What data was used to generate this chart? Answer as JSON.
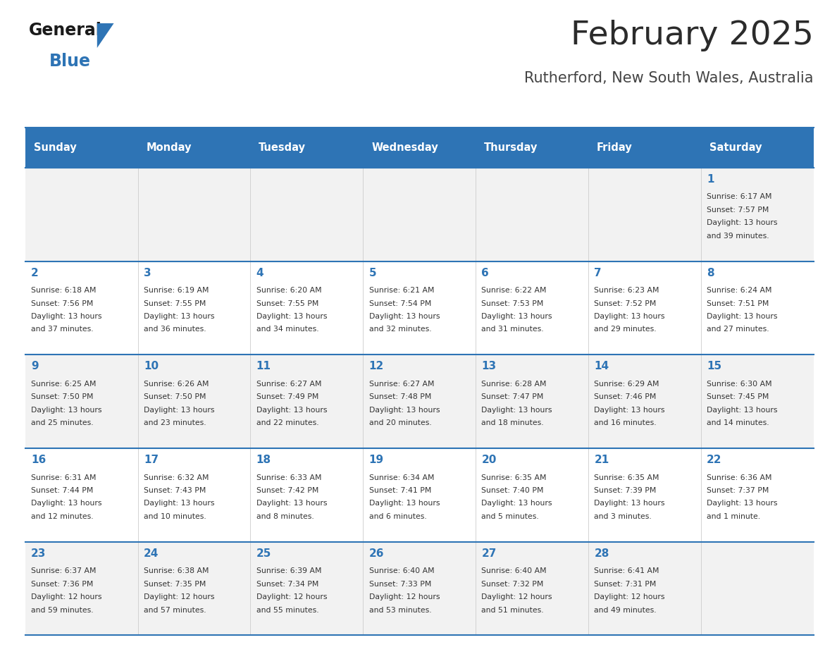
{
  "title": "February 2025",
  "subtitle": "Rutherford, New South Wales, Australia",
  "header_bg": "#2E74B5",
  "header_text": "#FFFFFF",
  "cell_bg_odd": "#F2F2F2",
  "cell_bg_even": "#FFFFFF",
  "separator_color": "#2E74B5",
  "day_headers": [
    "Sunday",
    "Monday",
    "Tuesday",
    "Wednesday",
    "Thursday",
    "Friday",
    "Saturday"
  ],
  "title_color": "#2B2B2B",
  "subtitle_color": "#444444",
  "day_num_color": "#2E74B5",
  "cell_text_color": "#333333",
  "calendar_data": [
    [
      null,
      null,
      null,
      null,
      null,
      null,
      {
        "day": "1",
        "sunrise": "6:17 AM",
        "sunset": "7:57 PM",
        "daylight": "13 hours and 39 minutes."
      }
    ],
    [
      {
        "day": "2",
        "sunrise": "6:18 AM",
        "sunset": "7:56 PM",
        "daylight": "13 hours and 37 minutes."
      },
      {
        "day": "3",
        "sunrise": "6:19 AM",
        "sunset": "7:55 PM",
        "daylight": "13 hours and 36 minutes."
      },
      {
        "day": "4",
        "sunrise": "6:20 AM",
        "sunset": "7:55 PM",
        "daylight": "13 hours and 34 minutes."
      },
      {
        "day": "5",
        "sunrise": "6:21 AM",
        "sunset": "7:54 PM",
        "daylight": "13 hours and 32 minutes."
      },
      {
        "day": "6",
        "sunrise": "6:22 AM",
        "sunset": "7:53 PM",
        "daylight": "13 hours and 31 minutes."
      },
      {
        "day": "7",
        "sunrise": "6:23 AM",
        "sunset": "7:52 PM",
        "daylight": "13 hours and 29 minutes."
      },
      {
        "day": "8",
        "sunrise": "6:24 AM",
        "sunset": "7:51 PM",
        "daylight": "13 hours and 27 minutes."
      }
    ],
    [
      {
        "day": "9",
        "sunrise": "6:25 AM",
        "sunset": "7:50 PM",
        "daylight": "13 hours and 25 minutes."
      },
      {
        "day": "10",
        "sunrise": "6:26 AM",
        "sunset": "7:50 PM",
        "daylight": "13 hours and 23 minutes."
      },
      {
        "day": "11",
        "sunrise": "6:27 AM",
        "sunset": "7:49 PM",
        "daylight": "13 hours and 22 minutes."
      },
      {
        "day": "12",
        "sunrise": "6:27 AM",
        "sunset": "7:48 PM",
        "daylight": "13 hours and 20 minutes."
      },
      {
        "day": "13",
        "sunrise": "6:28 AM",
        "sunset": "7:47 PM",
        "daylight": "13 hours and 18 minutes."
      },
      {
        "day": "14",
        "sunrise": "6:29 AM",
        "sunset": "7:46 PM",
        "daylight": "13 hours and 16 minutes."
      },
      {
        "day": "15",
        "sunrise": "6:30 AM",
        "sunset": "7:45 PM",
        "daylight": "13 hours and 14 minutes."
      }
    ],
    [
      {
        "day": "16",
        "sunrise": "6:31 AM",
        "sunset": "7:44 PM",
        "daylight": "13 hours and 12 minutes."
      },
      {
        "day": "17",
        "sunrise": "6:32 AM",
        "sunset": "7:43 PM",
        "daylight": "13 hours and 10 minutes."
      },
      {
        "day": "18",
        "sunrise": "6:33 AM",
        "sunset": "7:42 PM",
        "daylight": "13 hours and 8 minutes."
      },
      {
        "day": "19",
        "sunrise": "6:34 AM",
        "sunset": "7:41 PM",
        "daylight": "13 hours and 6 minutes."
      },
      {
        "day": "20",
        "sunrise": "6:35 AM",
        "sunset": "7:40 PM",
        "daylight": "13 hours and 5 minutes."
      },
      {
        "day": "21",
        "sunrise": "6:35 AM",
        "sunset": "7:39 PM",
        "daylight": "13 hours and 3 minutes."
      },
      {
        "day": "22",
        "sunrise": "6:36 AM",
        "sunset": "7:37 PM",
        "daylight": "13 hours and 1 minute."
      }
    ],
    [
      {
        "day": "23",
        "sunrise": "6:37 AM",
        "sunset": "7:36 PM",
        "daylight": "12 hours and 59 minutes."
      },
      {
        "day": "24",
        "sunrise": "6:38 AM",
        "sunset": "7:35 PM",
        "daylight": "12 hours and 57 minutes."
      },
      {
        "day": "25",
        "sunrise": "6:39 AM",
        "sunset": "7:34 PM",
        "daylight": "12 hours and 55 minutes."
      },
      {
        "day": "26",
        "sunrise": "6:40 AM",
        "sunset": "7:33 PM",
        "daylight": "12 hours and 53 minutes."
      },
      {
        "day": "27",
        "sunrise": "6:40 AM",
        "sunset": "7:32 PM",
        "daylight": "12 hours and 51 minutes."
      },
      {
        "day": "28",
        "sunrise": "6:41 AM",
        "sunset": "7:31 PM",
        "daylight": "12 hours and 49 minutes."
      },
      null
    ]
  ],
  "logo_general_color": "#1A1A1A",
  "logo_blue_color": "#2E74B5",
  "fig_width": 11.88,
  "fig_height": 9.18,
  "dpi": 100
}
